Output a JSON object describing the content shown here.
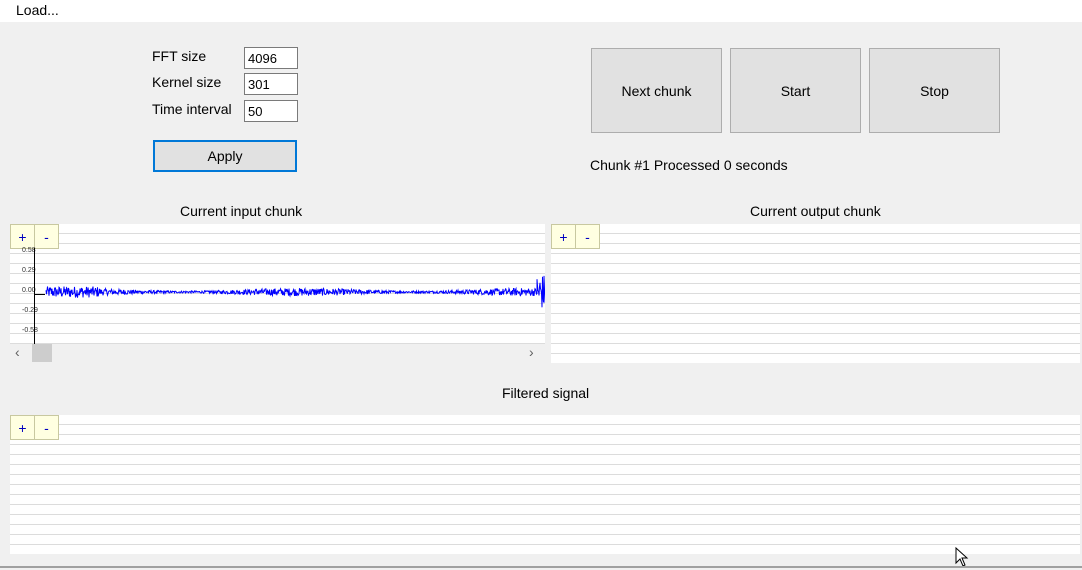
{
  "menu": {
    "load_label": "Load..."
  },
  "settings": {
    "fft_label": "FFT size",
    "fft_value": "4096",
    "kernel_label": "Kernel size",
    "kernel_value": "301",
    "interval_label": "Time interval",
    "interval_value": "50",
    "apply_label": "Apply"
  },
  "controls": {
    "next_label": "Next chunk",
    "start_label": "Start",
    "stop_label": "Stop",
    "status_text": "Chunk #1 Processed 0 seconds"
  },
  "charts": {
    "input_title": "Current input chunk",
    "output_title": "Current output chunk",
    "filtered_title": "Filtered signal",
    "zoom_in": "+",
    "zoom_out": "-"
  },
  "chart_data": [
    {
      "type": "line",
      "title": "Current input chunk",
      "yticks": [
        "0.58",
        "0.29",
        "0.00",
        "-0.29",
        "-0.58"
      ],
      "ylim": [
        -0.58,
        0.58
      ],
      "series": [
        {
          "color": "#0000ff",
          "shape": "audio waveform, amplitude ~0.05, centered at 0.00, spike at right end"
        }
      ]
    },
    {
      "type": "line",
      "title": "Current output chunk",
      "series": []
    },
    {
      "type": "line",
      "title": "Filtered signal",
      "series": []
    }
  ],
  "colors": {
    "waveform": "#0000ff",
    "focus_border": "#0078d7"
  }
}
